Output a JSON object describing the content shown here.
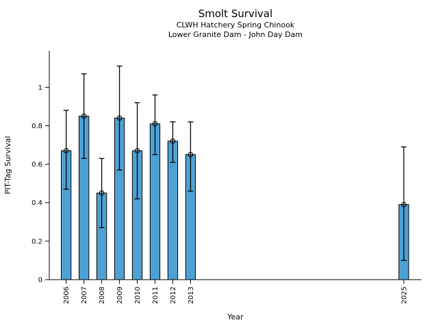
{
  "page": {
    "background": "#ffffff"
  },
  "chart_data": {
    "type": "bar",
    "title": "Smolt Survival",
    "subtitle1": "CLWH Hatchery Spring Chinook",
    "subtitle2": "Lower Granite Dam - John Day Dam",
    "xlabel": "Year",
    "ylabel": "PIT-Tag Survival",
    "categories": [
      "2006",
      "2007",
      "2008",
      "2009",
      "2010",
      "2011",
      "2012",
      "2013",
      "2025"
    ],
    "x": [
      2006,
      2007,
      2008,
      2009,
      2010,
      2011,
      2012,
      2013,
      2025
    ],
    "values": [
      0.67,
      0.85,
      0.45,
      0.84,
      0.67,
      0.81,
      0.72,
      0.65,
      0.39
    ],
    "error_low": [
      0.47,
      0.63,
      0.27,
      0.57,
      0.42,
      0.65,
      0.61,
      0.46,
      0.1
    ],
    "error_high": [
      0.88,
      1.07,
      0.63,
      1.11,
      0.92,
      0.96,
      0.82,
      0.82,
      0.69
    ],
    "yticks": [
      0,
      0.2,
      0.4,
      0.6,
      0.8,
      1
    ],
    "ytick_labels": [
      "0",
      "0.2",
      "0.4",
      "0.6",
      "0.8",
      "1"
    ],
    "ylim": [
      0,
      1.19
    ],
    "xlim": [
      2005.05,
      2026.0
    ],
    "bar_width_years": 0.55,
    "grid": false,
    "legend": null,
    "marker": "open-circle",
    "colors": {
      "bar_fill": "#4fa1d3",
      "bar_edge": "#000000",
      "error_bar": "#000000",
      "axis": "#000000",
      "text": "#000000"
    }
  }
}
